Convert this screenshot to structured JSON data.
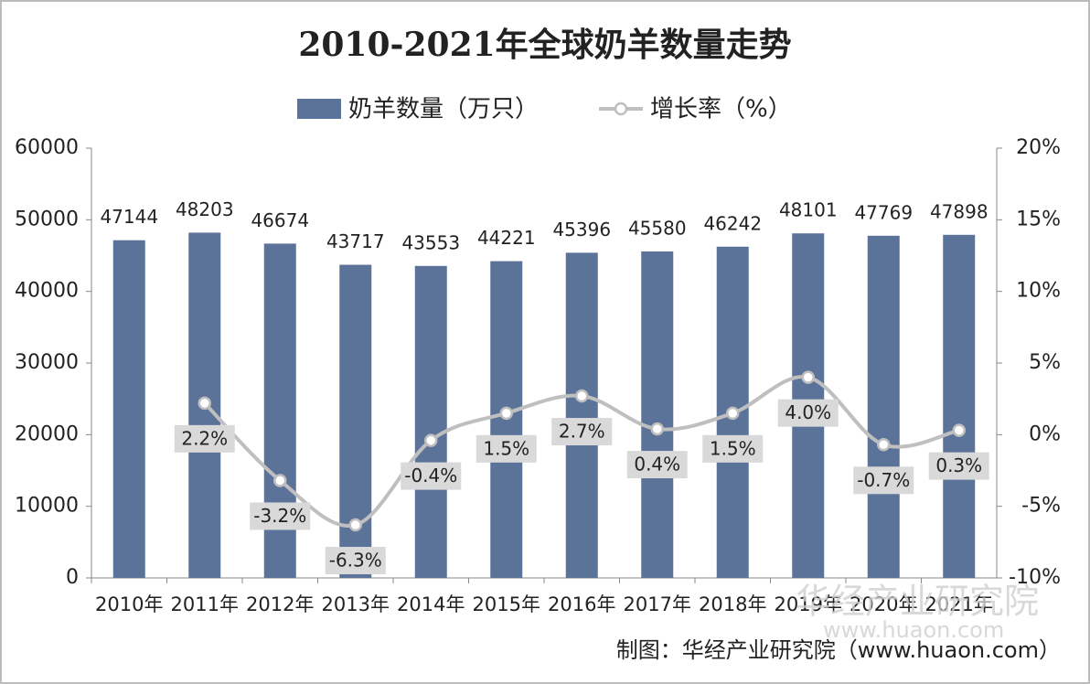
{
  "chart_data": {
    "type": "combo",
    "title": "2010-2021年全球奶羊数量走势",
    "categories": [
      "2010年",
      "2011年",
      "2012年",
      "2013年",
      "2014年",
      "2015年",
      "2016年",
      "2017年",
      "2018年",
      "2019年",
      "2020年",
      "2021年"
    ],
    "series": [
      {
        "name": "奶羊数量（万只）",
        "type": "bar",
        "color": "#5b7399",
        "values": [
          47144,
          48203,
          46674,
          43717,
          43553,
          44221,
          45396,
          45580,
          46242,
          48101,
          47769,
          47898
        ]
      },
      {
        "name": "增长率（%）",
        "type": "line",
        "axis": "y2",
        "color": "#bfbfbf",
        "values": [
          null,
          2.2,
          -3.2,
          -6.3,
          -0.4,
          1.5,
          2.7,
          0.4,
          1.5,
          4.0,
          -0.7,
          0.3
        ],
        "value_labels": [
          null,
          "2.2%",
          "-3.2%",
          "-6.3%",
          "-0.4%",
          "1.5%",
          "2.7%",
          "0.4%",
          "1.5%",
          "4.0%",
          "-0.7%",
          "0.3%"
        ]
      }
    ],
    "ylim": [
      0,
      60000
    ],
    "yticks": [
      0,
      10000,
      20000,
      30000,
      40000,
      50000,
      60000
    ],
    "y2lim": [
      -10,
      20
    ],
    "y2ticks": [
      {
        "value": -10,
        "label": "-10%"
      },
      {
        "value": -5,
        "label": "-5%"
      },
      {
        "value": 0,
        "label": "0%"
      },
      {
        "value": 5,
        "label": "5%"
      },
      {
        "value": 10,
        "label": "10%"
      },
      {
        "value": 15,
        "label": "15%"
      },
      {
        "value": 20,
        "label": "20%"
      }
    ],
    "legend": "top",
    "grid": false,
    "source": "制图：华经产业研究院（www.huaon.com）",
    "watermark": [
      "华经产业研究院",
      "www.huaon.com"
    ]
  }
}
